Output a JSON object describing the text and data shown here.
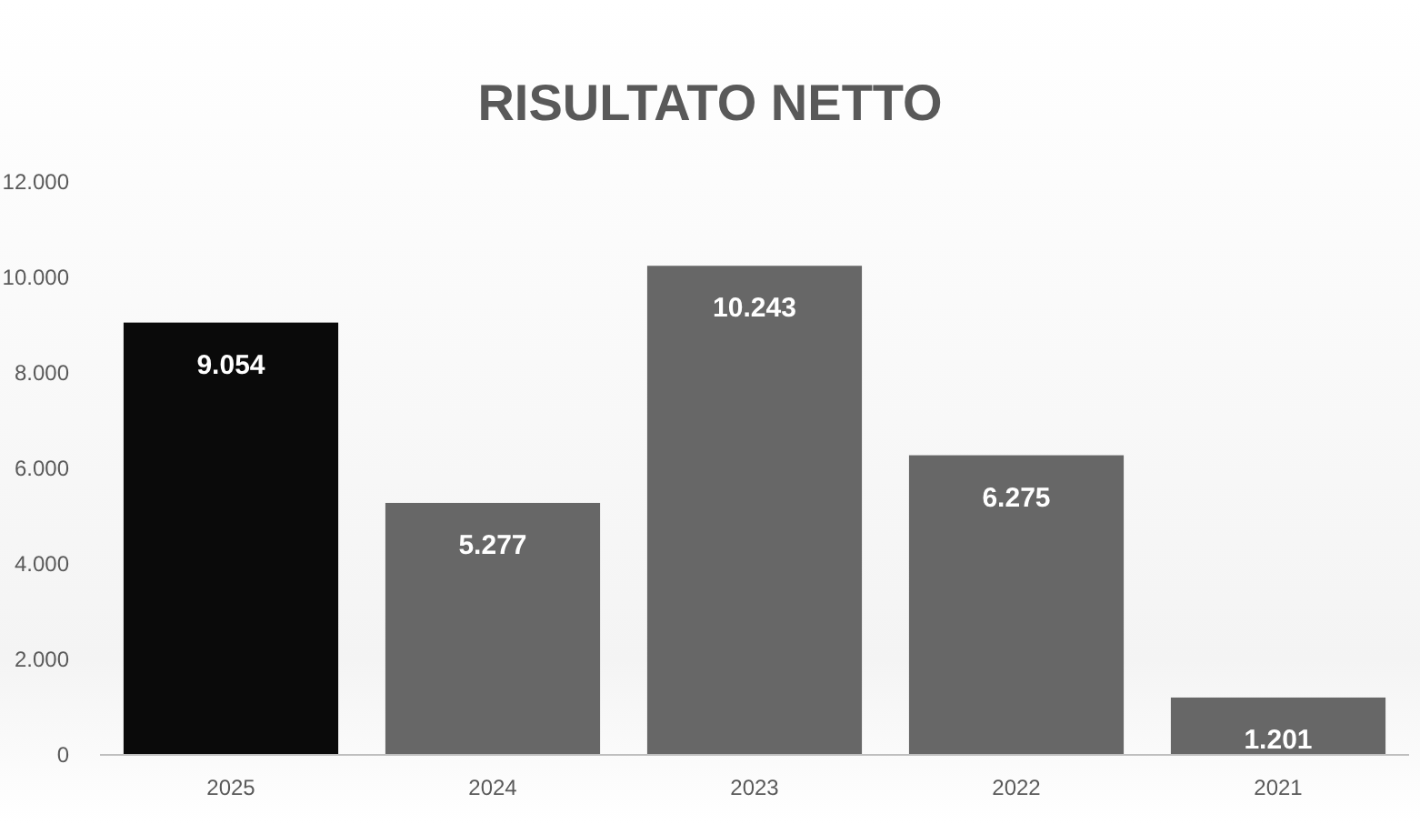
{
  "chart_data": {
    "type": "bar",
    "title": "RISULTATO NETTO",
    "categories": [
      "2025",
      "2024",
      "2023",
      "2022",
      "2021"
    ],
    "values": [
      9054,
      5277,
      10243,
      6275,
      1201
    ],
    "colors": [
      "#0a0a0a",
      "#676767",
      "#676767",
      "#676767",
      "#676767"
    ],
    "value_labels": [
      "9.054",
      "5.277",
      "10.243",
      "6.275",
      "1.201"
    ],
    "ylim": [
      0,
      12000
    ],
    "yticks": [
      {
        "value": 0,
        "label": "0"
      },
      {
        "value": 2000,
        "label": "2.000"
      },
      {
        "value": 4000,
        "label": "4.000"
      },
      {
        "value": 6000,
        "label": "6.000"
      },
      {
        "value": 8000,
        "label": "8.000"
      },
      {
        "value": 10000,
        "label": "10.000"
      },
      {
        "value": 12000,
        "label": "12.000"
      }
    ],
    "grid": false
  }
}
